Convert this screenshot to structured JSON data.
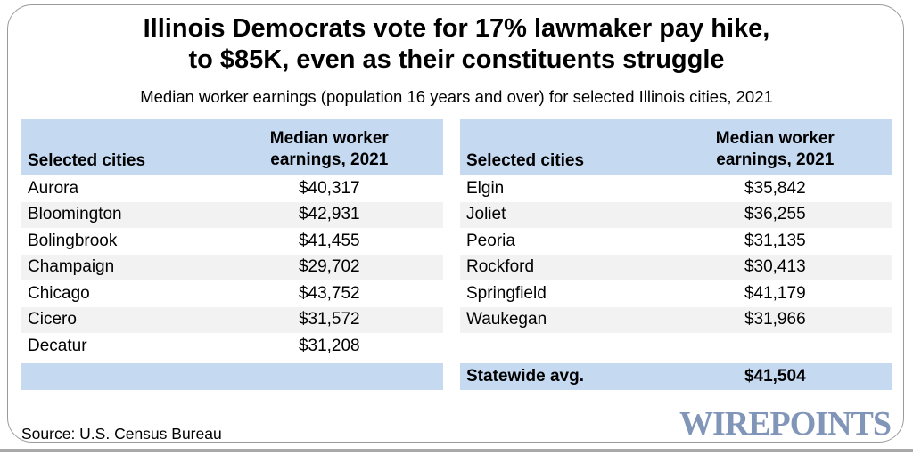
{
  "colors": {
    "header_blue": "#c5d9f1",
    "alt_row_gray": "#f2f2f2",
    "logo_blue": "#8095b7",
    "border_gray": "#9b9b9b"
  },
  "header": {
    "title_line1": "Illinois Democrats vote for 17% lawmaker pay hike,",
    "title_line2": "to $85K, even as their constituents struggle",
    "subtitle": "Median worker earnings (population 16 years and over) for selected Illinois cities, 2021"
  },
  "tables": {
    "left": {
      "header": {
        "city": "Selected cities",
        "value": "Median worker earnings, 2021"
      },
      "rows": [
        {
          "city": "Aurora",
          "value": "$40,317"
        },
        {
          "city": "Bloomington",
          "value": "$42,931"
        },
        {
          "city": "Bolingbrook",
          "value": "$41,455"
        },
        {
          "city": "Champaign",
          "value": "$29,702"
        },
        {
          "city": "Chicago",
          "value": "$43,752"
        },
        {
          "city": "Cicero",
          "value": "$31,572"
        },
        {
          "city": "Decatur",
          "value": "$31,208"
        }
      ]
    },
    "right": {
      "header": {
        "city": "Selected cities",
        "value": "Median worker earnings, 2021"
      },
      "rows": [
        {
          "city": "Elgin",
          "value": "$35,842"
        },
        {
          "city": "Joliet",
          "value": "$36,255"
        },
        {
          "city": "Peoria",
          "value": "$31,135"
        },
        {
          "city": "Rockford",
          "value": "$30,413"
        },
        {
          "city": "Springfield",
          "value": "$41,179"
        },
        {
          "city": "Waukegan",
          "value": "$31,966"
        }
      ],
      "summary": {
        "label": "Statewide avg.",
        "value": "$41,504"
      }
    }
  },
  "footer": {
    "source": "Source: U.S. Census Bureau",
    "logo": "WIREPOINTS"
  },
  "chart_data": {
    "type": "table",
    "title": "Illinois Democrats vote for 17% lawmaker pay hike, to $85K, even as their constituents struggle",
    "subtitle": "Median worker earnings (population 16 years and over) for selected Illinois cities, 2021",
    "columns": [
      "Selected cities",
      "Median worker earnings, 2021"
    ],
    "rows": [
      [
        "Aurora",
        40317
      ],
      [
        "Bloomington",
        42931
      ],
      [
        "Bolingbrook",
        41455
      ],
      [
        "Champaign",
        29702
      ],
      [
        "Chicago",
        43752
      ],
      [
        "Cicero",
        31572
      ],
      [
        "Decatur",
        31208
      ],
      [
        "Elgin",
        35842
      ],
      [
        "Joliet",
        36255
      ],
      [
        "Peoria",
        31135
      ],
      [
        "Rockford",
        30413
      ],
      [
        "Springfield",
        41179
      ],
      [
        "Waukegan",
        31966
      ]
    ],
    "summary_row": [
      "Statewide avg.",
      41504
    ],
    "source": "Source: U.S. Census Bureau"
  }
}
